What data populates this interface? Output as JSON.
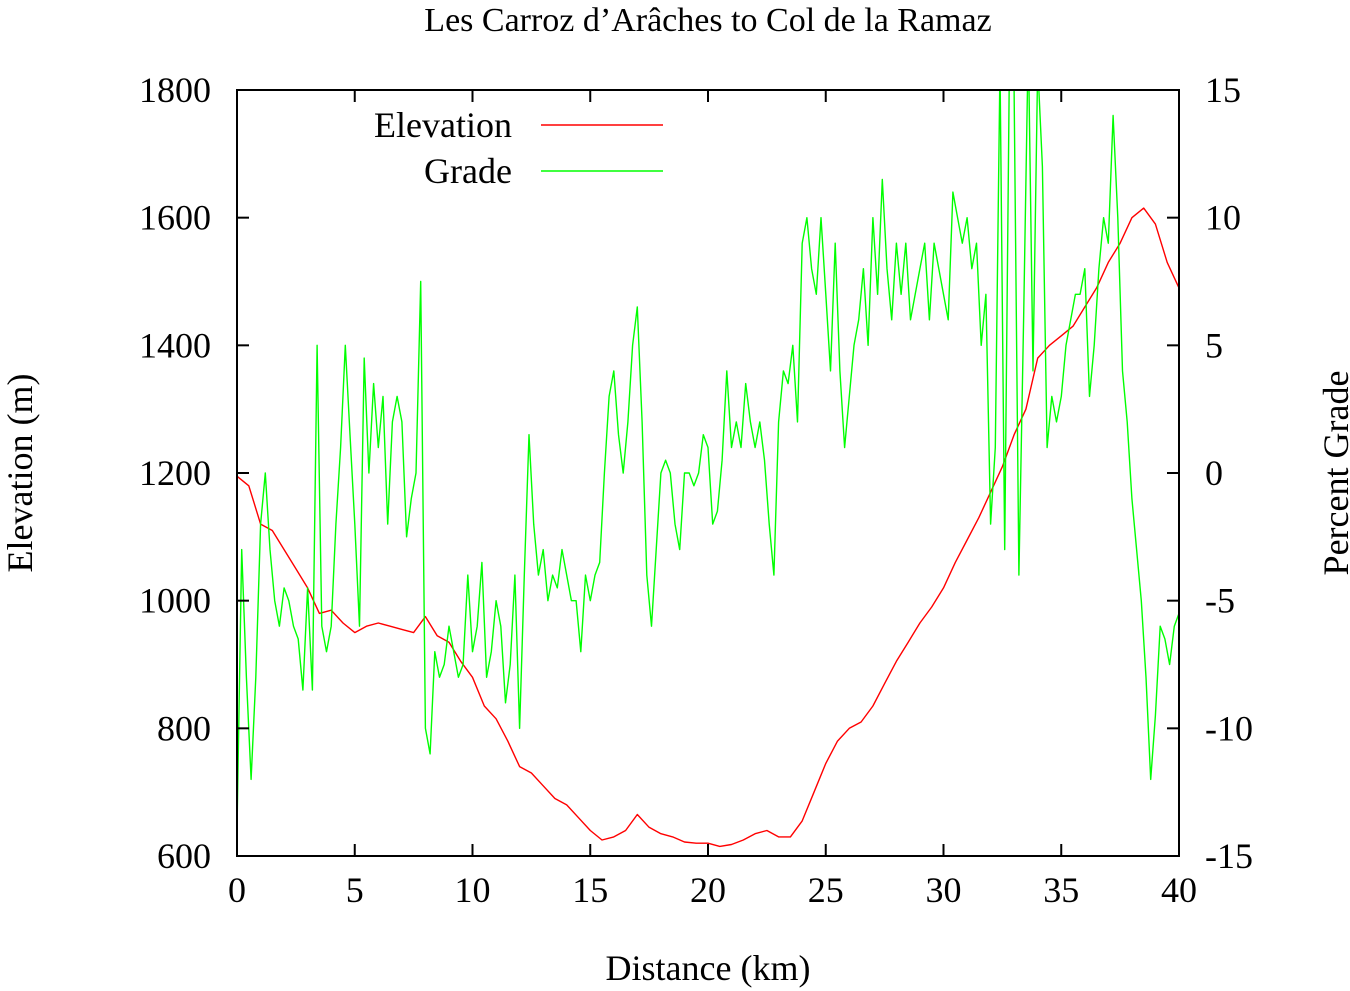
{
  "chart_data": {
    "type": "line",
    "title": "Les Carroz d’Arâches to Col de la Ramaz",
    "xlabel": "Distance (km)",
    "ylabel": "Elevation (m)",
    "y2label": "Percent Grade",
    "xlim": [
      0,
      40
    ],
    "ylim": [
      600,
      1800
    ],
    "y2lim": [
      -15,
      15
    ],
    "xticks": [
      "0",
      "5",
      "10",
      "15",
      "20",
      "25",
      "30",
      "35",
      "40"
    ],
    "yticks": [
      "600",
      "800",
      "1000",
      "1200",
      "1400",
      "1600",
      "1800"
    ],
    "y2ticks": [
      "-15",
      "-10",
      "-5",
      "0",
      "5",
      "10",
      "15"
    ],
    "grid": false,
    "legend_position": "top-left",
    "series": [
      {
        "name": "Elevation",
        "axis": "left",
        "color": "#ff0000",
        "x": [
          0,
          0.5,
          1,
          1.5,
          2,
          2.5,
          3,
          3.5,
          4,
          4.5,
          5,
          5.5,
          6,
          6.5,
          7,
          7.5,
          8,
          8.5,
          9,
          9.5,
          10,
          10.5,
          11,
          11.5,
          12,
          12.5,
          13,
          13.5,
          14,
          14.5,
          15,
          15.5,
          16,
          16.5,
          17,
          17.5,
          18,
          18.5,
          19,
          19.5,
          20,
          20.5,
          21,
          21.5,
          22,
          22.5,
          23,
          23.5,
          24,
          24.5,
          25,
          25.5,
          26,
          26.5,
          27,
          27.5,
          28,
          28.5,
          29,
          29.5,
          30,
          30.5,
          31,
          31.5,
          32,
          32.5,
          33,
          33.5,
          34,
          34.5,
          35,
          35.5,
          36,
          36.5,
          37,
          37.5,
          38,
          38.5,
          39,
          39.5,
          40
        ],
        "values": [
          1195,
          1180,
          1120,
          1110,
          1080,
          1050,
          1020,
          980,
          985,
          965,
          950,
          960,
          965,
          960,
          955,
          950,
          975,
          945,
          935,
          905,
          880,
          835,
          815,
          780,
          740,
          730,
          710,
          690,
          680,
          660,
          640,
          625,
          630,
          640,
          665,
          645,
          635,
          630,
          622,
          620,
          620,
          615,
          618,
          625,
          635,
          640,
          630,
          630,
          655,
          700,
          745,
          780,
          800,
          810,
          835,
          870,
          905,
          935,
          965,
          990,
          1020,
          1060,
          1095,
          1130,
          1170,
          1210,
          1260,
          1300,
          1380,
          1400,
          1415,
          1430,
          1460,
          1490,
          1530,
          1560,
          1600,
          1615,
          1590,
          1530,
          1490
        ]
      },
      {
        "name": "Grade",
        "axis": "right",
        "color": "#00ff00",
        "x": [
          0,
          0.2,
          0.4,
          0.6,
          0.8,
          1,
          1.2,
          1.4,
          1.6,
          1.8,
          2,
          2.2,
          2.4,
          2.6,
          2.8,
          3,
          3.2,
          3.4,
          3.6,
          3.8,
          4,
          4.2,
          4.4,
          4.6,
          4.8,
          5,
          5.2,
          5.4,
          5.6,
          5.8,
          6,
          6.2,
          6.4,
          6.6,
          6.8,
          7,
          7.2,
          7.4,
          7.6,
          7.8,
          8,
          8.2,
          8.4,
          8.6,
          8.8,
          9,
          9.2,
          9.4,
          9.6,
          9.8,
          10,
          10.2,
          10.4,
          10.6,
          10.8,
          11,
          11.2,
          11.4,
          11.6,
          11.8,
          12,
          12.2,
          12.4,
          12.6,
          12.8,
          13,
          13.2,
          13.4,
          13.6,
          13.8,
          14,
          14.2,
          14.4,
          14.6,
          14.8,
          15,
          15.2,
          15.4,
          15.6,
          15.8,
          16,
          16.2,
          16.4,
          16.6,
          16.8,
          17,
          17.2,
          17.4,
          17.6,
          17.8,
          18,
          18.2,
          18.4,
          18.6,
          18.8,
          19,
          19.2,
          19.4,
          19.6,
          19.8,
          20,
          20.2,
          20.4,
          20.6,
          20.8,
          21,
          21.2,
          21.4,
          21.6,
          21.8,
          22,
          22.2,
          22.4,
          22.6,
          22.8,
          23,
          23.2,
          23.4,
          23.6,
          23.8,
          24,
          24.2,
          24.4,
          24.6,
          24.8,
          25,
          25.2,
          25.4,
          25.6,
          25.8,
          26,
          26.2,
          26.4,
          26.6,
          26.8,
          27,
          27.2,
          27.4,
          27.6,
          27.8,
          28,
          28.2,
          28.4,
          28.6,
          28.8,
          29,
          29.2,
          29.4,
          29.6,
          29.8,
          30,
          30.2,
          30.4,
          30.6,
          30.8,
          31,
          31.2,
          31.4,
          31.6,
          31.8,
          32,
          32.2,
          32.4,
          32.6,
          32.8,
          33,
          33.2,
          33.4,
          33.6,
          33.8,
          34,
          34.2,
          34.4,
          34.6,
          34.8,
          35,
          35.2,
          35.4,
          35.6,
          35.8,
          36,
          36.2,
          36.4,
          36.6,
          36.8,
          37,
          37.2,
          37.4,
          37.6,
          37.8,
          38,
          38.2,
          38.4,
          38.6,
          38.8,
          39,
          39.2,
          39.4,
          39.6,
          39.8,
          40
        ],
        "values": [
          -14,
          -3,
          -8,
          -12,
          -8,
          -2,
          0,
          -3,
          -5,
          -6,
          -4.5,
          -5,
          -6,
          -6.5,
          -8.5,
          -4.5,
          -8.5,
          5,
          -6,
          -7,
          -6,
          -2,
          1,
          5,
          1.5,
          -2,
          -6,
          4.5,
          0,
          3.5,
          1,
          3,
          -2,
          2,
          3,
          2,
          -2.5,
          -1,
          0,
          7.5,
          -10,
          -11,
          -7,
          -8,
          -7.5,
          -6,
          -7,
          -8,
          -7.5,
          -4,
          -7,
          -6,
          -3.5,
          -8,
          -7,
          -5,
          -6,
          -9,
          -7.5,
          -4,
          -10,
          -4,
          1.5,
          -2,
          -4,
          -3,
          -5,
          -4,
          -4.5,
          -3,
          -4,
          -5,
          -5,
          -7,
          -4,
          -5,
          -4,
          -3.5,
          0,
          3,
          4,
          1.5,
          0,
          2,
          5,
          6.5,
          2,
          -4,
          -6,
          -3,
          0,
          0.5,
          0,
          -2,
          -3,
          0,
          0,
          -0.5,
          0,
          1.5,
          1,
          -2,
          -1.5,
          0.5,
          4,
          1,
          2,
          1,
          3.5,
          2,
          1,
          2,
          0.5,
          -2,
          -4,
          2,
          4,
          3.5,
          5,
          2,
          9,
          10,
          8,
          7,
          10,
          7,
          4,
          9,
          4,
          1,
          3,
          5,
          6,
          8,
          5,
          10,
          7,
          11.5,
          8,
          6,
          9,
          7,
          9,
          6,
          7,
          8,
          9,
          6,
          9,
          8,
          7,
          6,
          11,
          10,
          9,
          10,
          8,
          9,
          5,
          7,
          -2,
          1,
          16,
          -3,
          16,
          15,
          -4,
          6,
          17,
          4,
          16,
          12,
          1,
          3,
          2,
          3,
          5,
          6,
          7,
          7,
          8,
          3,
          5,
          8,
          10,
          9,
          14,
          10,
          4,
          2,
          -1,
          -3,
          -5,
          -8,
          -12,
          -9.5,
          -6,
          -6.5,
          -7.5,
          -6,
          -5.5
        ]
      }
    ]
  }
}
